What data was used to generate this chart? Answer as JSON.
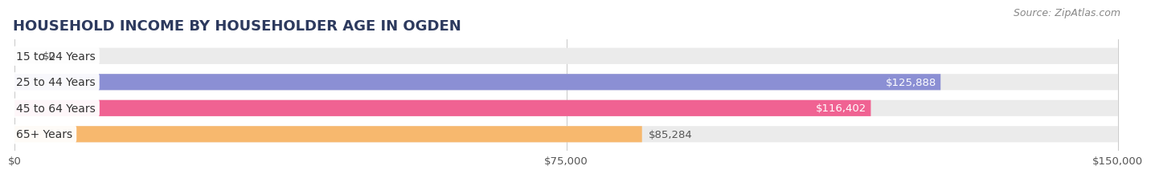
{
  "title": "HOUSEHOLD INCOME BY HOUSEHOLDER AGE IN OGDEN",
  "source": "Source: ZipAtlas.com",
  "categories": [
    "15 to 24 Years",
    "25 to 44 Years",
    "45 to 64 Years",
    "65+ Years"
  ],
  "values": [
    0,
    125888,
    116402,
    85284
  ],
  "bar_colors": [
    "#5ececa",
    "#8b8fd4",
    "#f06292",
    "#f7b86e"
  ],
  "bar_bg_color": "#ebebeb",
  "xlim": [
    0,
    150000
  ],
  "xticks": [
    0,
    75000,
    150000
  ],
  "xtick_labels": [
    "$0",
    "$75,000",
    "$150,000"
  ],
  "value_labels": [
    "$0",
    "$125,888",
    "$116,402",
    "$85,284"
  ],
  "value_label_inside": [
    false,
    true,
    true,
    false
  ],
  "value_label_colors_inside": [
    "#555555",
    "#ffffff",
    "#ffffff",
    "#555555"
  ],
  "title_fontsize": 13,
  "source_fontsize": 9,
  "tick_fontsize": 9.5,
  "cat_fontsize": 10,
  "val_fontsize": 9.5,
  "bar_height": 0.62,
  "background_color": "#ffffff",
  "grid_color": "#cccccc"
}
